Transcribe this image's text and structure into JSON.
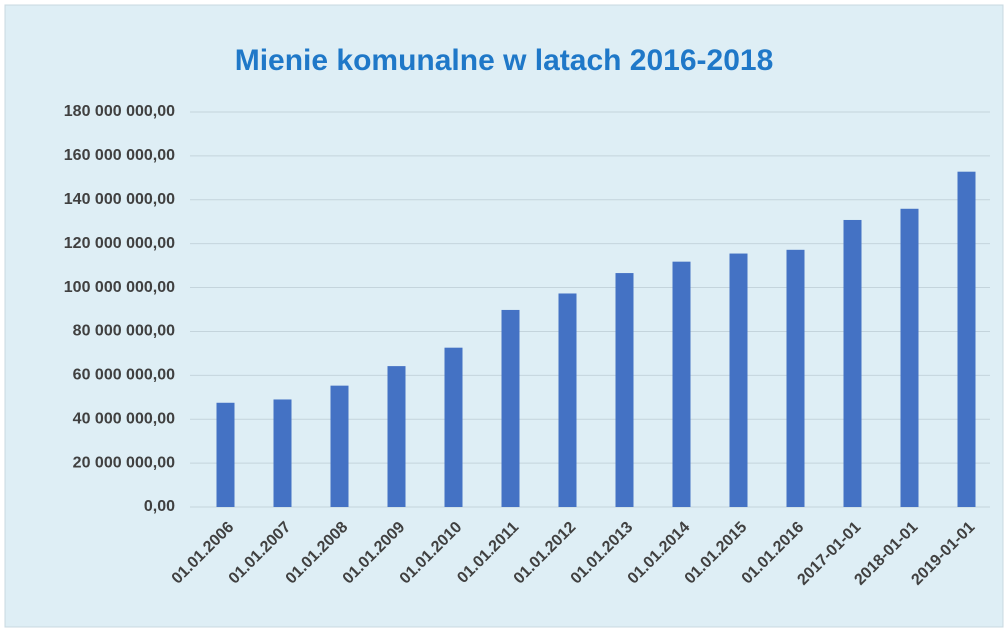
{
  "chart_data": {
    "type": "bar",
    "title": "Mienie komunalne w latach 2016-2018",
    "categories": [
      "01.01.2006",
      "01.01.2007",
      "01.01.2008",
      "01.01.2009",
      "01.01.2010",
      "01.01.2011",
      "01.01.2012",
      "01.01.2013",
      "01.01.2014",
      "01.01.2015",
      "01.01.2016",
      "2017-01-01",
      "2018-01-01",
      "2019-01-01"
    ],
    "values": [
      47500000,
      49000000,
      55300000,
      64200000,
      72600000,
      89800000,
      97300000,
      106600000,
      111800000,
      115500000,
      117200000,
      130800000,
      135900000,
      152800000
    ],
    "color": "#4472c4",
    "ylim": [
      0,
      180000000
    ],
    "yticks": [
      {
        "value": 0,
        "label": "0,00"
      },
      {
        "value": 20000000,
        "label": "20 000 000,00"
      },
      {
        "value": 40000000,
        "label": "40 000 000,00"
      },
      {
        "value": 60000000,
        "label": "60 000 000,00"
      },
      {
        "value": 80000000,
        "label": "80 000 000,00"
      },
      {
        "value": 100000000,
        "label": "100 000 000,00"
      },
      {
        "value": 120000000,
        "label": "120 000 000,00"
      },
      {
        "value": 140000000,
        "label": "140 000 000,00"
      },
      {
        "value": 160000000,
        "label": "160 000 000,00"
      },
      {
        "value": 180000000,
        "label": "180 000 000,00"
      }
    ],
    "grid": true
  }
}
